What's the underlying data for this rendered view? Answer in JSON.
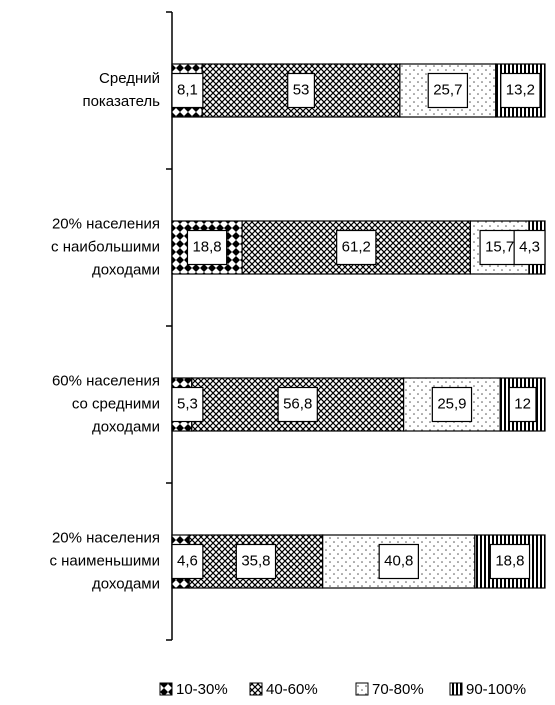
{
  "chart_data": {
    "type": "stacked_bar_horizontal",
    "categories": [
      [
        "Средний",
        "показатель"
      ],
      [
        "20% населения",
        "с наибольшими",
        "доходами"
      ],
      [
        "60% населения",
        "со средними",
        "доходами"
      ],
      [
        "20% населения",
        "с наименьшими",
        "доходами"
      ]
    ],
    "xlim": [
      0,
      100
    ],
    "series": [
      {
        "name": "10-30%",
        "color": "#000000",
        "values": [
          8.1,
          18.8,
          5.3,
          4.6
        ],
        "value_labels": [
          "8,1",
          "18,8",
          "5,3",
          "4,6"
        ]
      },
      {
        "name": "40-60%",
        "color": "#000000",
        "values": [
          53,
          61.2,
          56.8,
          35.8
        ],
        "value_labels": [
          "53",
          "61,2",
          "56,8",
          "35,8"
        ]
      },
      {
        "name": "70-80%",
        "color": "#000000",
        "values": [
          25.7,
          15.7,
          25.9,
          40.8
        ],
        "value_labels": [
          "25,7",
          "15,7",
          "25,9",
          "40,8"
        ]
      },
      {
        "name": "90-100%",
        "color": "#000000",
        "values": [
          13.2,
          4.3,
          12,
          18.8
        ],
        "value_labels": [
          "13,2",
          "4,3",
          "12",
          "18,8"
        ]
      }
    ]
  }
}
